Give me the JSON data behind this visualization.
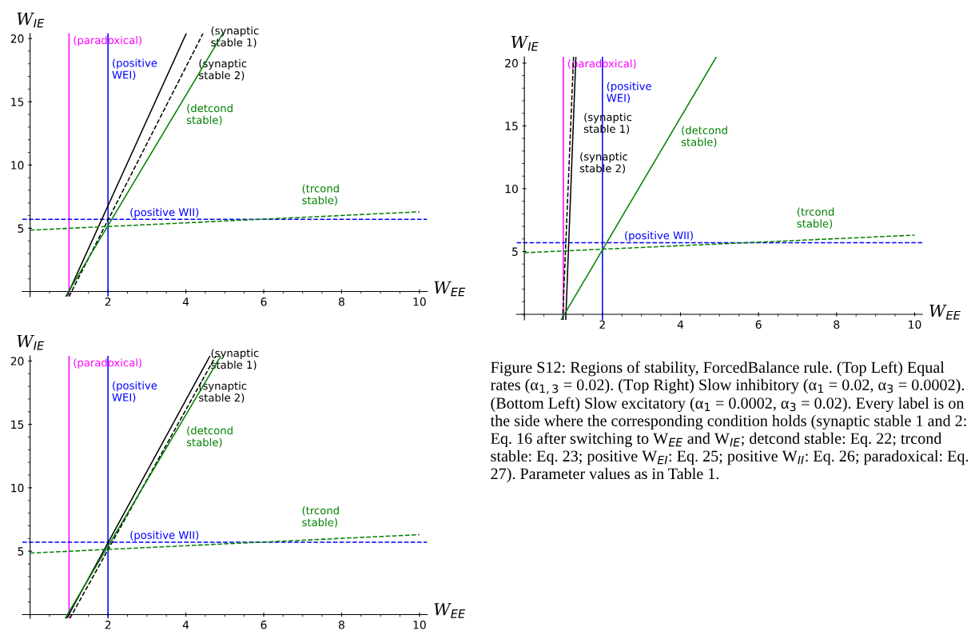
{
  "chart_data": [
    {
      "type": "line",
      "xlabel": "W$_{EE}$",
      "ylabel": "W$_{IE}$",
      "xlim": [
        -0.2,
        10.2
      ],
      "ylim": [
        -0.4,
        20.4
      ],
      "xticks": [
        2,
        4,
        6,
        8,
        10
      ],
      "yticks": [
        5,
        10,
        15,
        20
      ],
      "grid": false,
      "series": [
        {
          "color": "#000000",
          "line_style": "solid",
          "x": [
            0.94,
            4.01
          ],
          "values": [
            -0.4,
            20.4
          ]
        },
        {
          "color": "#000000",
          "line_style": "dashed",
          "x": [
            1.0,
            4.44
          ],
          "values": [
            -0.4,
            20.4
          ]
        },
        {
          "color": "#008000",
          "line_style": "solid",
          "x": [
            0.91,
            4.95
          ],
          "values": [
            -0.4,
            20.4
          ]
        },
        {
          "color": "#008000",
          "line_style": "dashed",
          "x": [
            0,
            10
          ],
          "values": [
            4.85,
            6.3
          ]
        }
      ],
      "annotations": [
        "(synaptic\nstable 1)",
        "(synaptic\nstable 2)",
        "(detcond\nstable)",
        "(trcond\nstable)"
      ],
      "ref_lines": [
        {
          "axis": "x",
          "value": 1,
          "label": "(paradoxical)",
          "color": "#ff00ff",
          "line_style": "solid"
        },
        {
          "axis": "x",
          "value": 2,
          "label": "(positive\nWEI)",
          "color": "#0000ff",
          "line_style": "solid"
        },
        {
          "axis": "y",
          "value": 5.7,
          "label": "(positive WII)",
          "color": "#0000ff",
          "line_style": "dashed"
        }
      ]
    },
    {
      "type": "line",
      "xlabel": "W$_{EE}$",
      "ylabel": "W$_{IE}$",
      "xlim": [
        -0.2,
        10.2
      ],
      "ylim": [
        -0.45,
        20.5
      ],
      "xticks": [
        2,
        4,
        6,
        8,
        10
      ],
      "yticks": [
        5,
        10,
        15,
        20
      ],
      "grid": false,
      "series": [
        {
          "color": "#000000",
          "line_style": "solid",
          "x": [
            1.06,
            1.32
          ],
          "values": [
            -0.45,
            20.5
          ]
        },
        {
          "color": "#000000",
          "line_style": "dashed",
          "x": [
            0.98,
            1.26
          ],
          "values": [
            -0.45,
            20.5
          ]
        },
        {
          "color": "#008000",
          "line_style": "solid",
          "x": [
            0.94,
            4.92
          ],
          "values": [
            -0.45,
            20.5
          ]
        },
        {
          "color": "#008000",
          "line_style": "dashed",
          "x": [
            0,
            10
          ],
          "values": [
            4.9,
            6.3
          ]
        }
      ],
      "annotations": [
        "(synaptic\nstable 1)",
        "(synaptic\nstable 2)",
        "(detcond\nstable)",
        "(trcond\nstable)"
      ],
      "ref_lines": [
        {
          "axis": "x",
          "value": 1,
          "label": "(paradoxical)",
          "color": "#ff00ff",
          "line_style": "solid"
        },
        {
          "axis": "x",
          "value": 2,
          "label": "(positive\nWEI)",
          "color": "#0000ff",
          "line_style": "solid"
        },
        {
          "axis": "y",
          "value": 5.7,
          "label": "(positive WII)",
          "color": "#0000ff",
          "line_style": "dashed"
        }
      ]
    },
    {
      "type": "line",
      "xlabel": "W$_{EE}$",
      "ylabel": "W$_{IE}$",
      "xlim": [
        -0.2,
        10.2
      ],
      "ylim": [
        -0.3,
        20.4
      ],
      "xticks": [
        2,
        4,
        6,
        8,
        10
      ],
      "yticks": [
        5,
        10,
        15,
        20
      ],
      "grid": false,
      "series": [
        {
          "color": "#000000",
          "line_style": "solid",
          "x": [
            0.94,
            4.62
          ],
          "values": [
            -0.3,
            20.4
          ]
        },
        {
          "color": "#000000",
          "line_style": "dashed",
          "x": [
            1.02,
            4.77
          ],
          "values": [
            -0.3,
            20.4
          ]
        },
        {
          "color": "#008000",
          "line_style": "solid",
          "x": [
            0.9,
            4.9
          ],
          "values": [
            -0.3,
            20.4
          ]
        },
        {
          "color": "#008000",
          "line_style": "dashed",
          "x": [
            0,
            10
          ],
          "values": [
            4.85,
            6.3
          ]
        }
      ],
      "annotations": [
        "(synaptic\nstable 1)",
        "(synaptic\nstable 2)",
        "(detcond\nstable)",
        "(trcond\nstable)"
      ],
      "ref_lines": [
        {
          "axis": "x",
          "value": 1,
          "label": "(paradoxical)",
          "color": "#ff00ff",
          "line_style": "solid"
        },
        {
          "axis": "x",
          "value": 2,
          "label": "(positive\nWEI)",
          "color": "#0000ff",
          "line_style": "solid"
        },
        {
          "axis": "y",
          "value": 5.7,
          "label": "(positive WII)",
          "color": "#0000ff",
          "line_style": "dashed"
        }
      ]
    },
    {
      "type": "other",
      "annotations": [
        "Figure S12: Regions of stability, ForcedBalance rule. (Top Left) Equal rates (α$_{1,3}$ = 0.02). (Top Right) Slow inhibitory (α$_{1}$ = 0.02, α$_{3}$ = 0.0002). (Bottom Left) Slow excitatory (α$_{1}$ = 0.0002, α$_{3}$ = 0.02). Every label is on the side where the corresponding condition holds (synaptic stable 1 and 2: Eq. 16 after switching to W$_{EE}$ and W$_{IE}$; detcond stable: Eq. 22; trcond stable: Eq. 23; positive W$_{EI}$: Eq. 25; positive W$_{II}$: Eq. 26; paradoxical: Eq. 27). Parameter values as in Table 1."
      ]
    }
  ]
}
